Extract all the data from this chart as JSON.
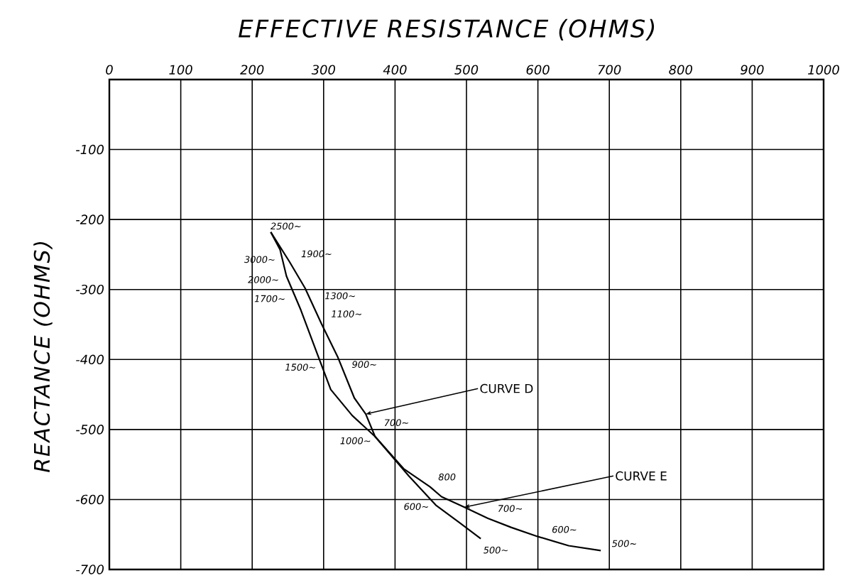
{
  "chart_data": {
    "type": "line",
    "xlabel": "EFFECTIVE RESISTANCE (OHMS)",
    "ylabel": "REACTANCE (OHMS)",
    "xlim": [
      0,
      1000
    ],
    "ylim": [
      -700,
      0
    ],
    "xticks": [
      0,
      100,
      200,
      300,
      400,
      500,
      600,
      700,
      800,
      900,
      1000
    ],
    "yticks": [
      -100,
      -200,
      -300,
      -400,
      -500,
      -600,
      -700
    ],
    "grid": true,
    "marker": "none",
    "line_style": "solid",
    "series": [
      {
        "name": "CURVE D",
        "color": "#000000",
        "x": [
          226,
          252,
          274,
          297,
          320,
          343,
          359,
          372,
          419,
          457,
          490,
          520
        ],
        "values": [
          -218,
          -260,
          -298,
          -349,
          -397,
          -455,
          -478,
          -510,
          -566,
          -608,
          -633,
          -656
        ]
      },
      {
        "name": "CURVE E",
        "color": "#000000",
        "x": [
          226,
          239,
          248,
          268,
          293,
          310,
          340,
          372,
          412,
          449,
          465,
          497,
          530,
          563,
          600,
          643,
          688
        ],
        "values": [
          -218,
          -243,
          -281,
          -329,
          -397,
          -443,
          -480,
          -510,
          -556,
          -582,
          -596,
          -611,
          -627,
          -640,
          -653,
          -666,
          -673
        ]
      }
    ],
    "annotations": [
      {
        "text": "2500~",
        "x": 226,
        "y": -218
      },
      {
        "text": "1900~",
        "x": 245,
        "y": -249
      },
      {
        "text": "3000~",
        "x": 242,
        "y": -257
      },
      {
        "text": "2000~",
        "x": 253,
        "y": -294
      },
      {
        "text": "1300~",
        "x": 280,
        "y": -311
      },
      {
        "text": "1700~",
        "x": 260,
        "y": -311
      },
      {
        "text": "1100~",
        "x": 297,
        "y": -349
      },
      {
        "text": "1500~",
        "x": 299,
        "y": -413
      },
      {
        "text": "900~",
        "x": 324,
        "y": -407
      },
      {
        "text": "700~",
        "x": 359,
        "y": -478
      },
      {
        "text": "1000~",
        "x": 372,
        "y": -510
      },
      {
        "text": "800",
        "x": 449,
        "y": -582
      },
      {
        "text": "600~",
        "x": 457,
        "y": -608
      },
      {
        "text": "700~",
        "x": 530,
        "y": -627
      },
      {
        "text": "600~",
        "x": 600,
        "y": -653
      },
      {
        "text": "500~",
        "x": 520,
        "y": -656
      },
      {
        "text": "500~",
        "x": 688,
        "y": -673
      }
    ]
  }
}
